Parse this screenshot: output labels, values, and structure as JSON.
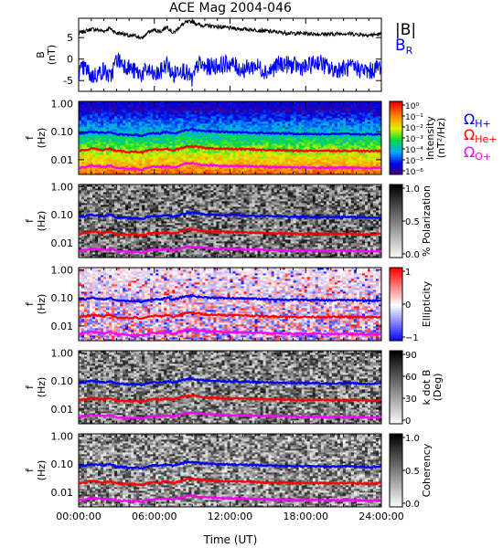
{
  "chart_data": {
    "type": "spectrogram",
    "title": "ACE Mag 2004-046",
    "x": {
      "label": "Time (UT)",
      "ticks": [
        "00:00:00",
        "06:00:00",
        "12:00:00",
        "18:00:00",
        "24:00:00"
      ],
      "tick_hours": [
        0,
        6,
        12,
        18,
        24
      ],
      "range_hours": [
        0,
        24
      ]
    },
    "line_panel": {
      "ylabel_top": "B",
      "ylabel_bottom": "(nT)",
      "yticks": [
        "5",
        "0",
        "-5"
      ],
      "ytick_values": [
        5,
        0,
        -5
      ],
      "ylim": [
        -7.5,
        9.5
      ],
      "series": [
        {
          "name": "|B|",
          "color": "#000000",
          "hours": [
            0,
            0.5,
            1,
            1.5,
            2,
            2.5,
            3,
            3.5,
            4,
            4.5,
            5,
            5.5,
            6,
            6.5,
            7,
            7.5,
            8,
            8.5,
            9,
            9.5,
            10,
            11,
            12,
            13,
            14,
            15,
            16,
            17,
            18,
            19,
            20,
            21,
            22,
            23,
            24
          ],
          "values": [
            6,
            6.5,
            7,
            6.8,
            6.5,
            7.2,
            6,
            6,
            5.3,
            5.5,
            4.8,
            6.2,
            6.8,
            6.4,
            7.6,
            6,
            7.5,
            8.5,
            8.8,
            8,
            7.8,
            7.6,
            7.2,
            7,
            6.8,
            6.5,
            6.2,
            6,
            6,
            5.8,
            5.8,
            6,
            5.8,
            5.6,
            5.8
          ]
        },
        {
          "name": "B",
          "name_sub": "R",
          "color": "#0000ff",
          "hours": [
            0,
            0.5,
            1,
            1.5,
            2,
            2.5,
            3,
            3.5,
            4,
            4.5,
            5,
            5.5,
            6,
            6.5,
            7,
            7.5,
            8,
            8.5,
            9,
            9.5,
            10,
            11,
            12,
            13,
            14,
            15,
            16,
            17,
            18,
            19,
            20,
            21,
            22,
            23,
            24
          ],
          "values": [
            -3,
            -2,
            -4,
            -3.5,
            -2.5,
            -4.5,
            0,
            -1,
            -2,
            -3,
            -3.5,
            -2.5,
            -4,
            -3,
            -1,
            -4,
            -2,
            -3,
            -5,
            -1,
            -2,
            -1.5,
            -1,
            -2.5,
            -1.5,
            -3,
            -1,
            -1.5,
            -2,
            -0.5,
            -2.5,
            -2.2,
            -2,
            -3,
            -1.5
          ]
        }
      ]
    },
    "spectrogram_panels": [
      {
        "ylabel_top": "f",
        "ylabel_bottom": "(Hz)",
        "colorbar_label": "Intensity",
        "colorbar_label2": "(nT²/Hz)",
        "scale": "rainbow",
        "colorbar_ticks": [
          "10⁰",
          "10⁻¹",
          "10⁻²",
          "10⁻³",
          "10⁻⁴",
          "10⁻⁵",
          "10⁻⁶"
        ]
      },
      {
        "ylabel_top": "f",
        "ylabel_bottom": "(Hz)",
        "colorbar_label": "% Polarization",
        "colorbar_label2": "",
        "scale": "gray",
        "colorbar_ticks": [
          "1.0",
          "0.5",
          "0.0"
        ]
      },
      {
        "ylabel_top": "f",
        "ylabel_bottom": "(Hz)",
        "colorbar_label": "Ellipticity",
        "colorbar_label2": "",
        "scale": "bwr",
        "colorbar_ticks": [
          "1",
          "0",
          "−1"
        ]
      },
      {
        "ylabel_top": "f",
        "ylabel_bottom": "(Hz)",
        "colorbar_label": "k dot B",
        "colorbar_label2": "(Deg)",
        "scale": "gray",
        "colorbar_ticks": [
          "90",
          "60",
          "30",
          "0"
        ]
      },
      {
        "ylabel_top": "f",
        "ylabel_bottom": "(Hz)",
        "colorbar_label": "Coherency",
        "colorbar_label2": "",
        "scale": "gray",
        "colorbar_ticks": [
          "1.0",
          "0.5",
          "0.0"
        ]
      }
    ],
    "frequency_axis": {
      "scale": "log",
      "yticks": [
        "1.00",
        "0.10",
        "0.01"
      ],
      "ytick_values": [
        1.0,
        0.1,
        0.01
      ],
      "ylim": [
        0.003,
        1.2
      ]
    },
    "gyro_lines": {
      "hours": [
        0,
        0.5,
        1,
        1.5,
        2,
        2.5,
        3,
        3.5,
        4,
        4.5,
        5,
        5.5,
        6,
        6.5,
        7,
        7.5,
        8,
        8.5,
        9,
        9.5,
        10,
        11,
        12,
        13,
        14,
        15,
        16,
        17,
        18,
        19,
        20,
        21,
        22,
        23,
        24
      ],
      "series": [
        {
          "label": "Ω",
          "sub": "H+",
          "color": "#0000ff",
          "values": [
            0.085,
            0.09,
            0.1,
            0.095,
            0.09,
            0.1,
            0.08,
            0.08,
            0.075,
            0.078,
            0.07,
            0.085,
            0.09,
            0.088,
            0.1,
            0.085,
            0.1,
            0.115,
            0.12,
            0.11,
            0.105,
            0.1,
            0.098,
            0.095,
            0.092,
            0.09,
            0.087,
            0.085,
            0.085,
            0.083,
            0.082,
            0.084,
            0.082,
            0.08,
            0.082
          ]
        },
        {
          "label": "Ω",
          "sub": "He+",
          "color": "#ff0000",
          "values": [
            0.021,
            0.022,
            0.025,
            0.024,
            0.022,
            0.025,
            0.02,
            0.02,
            0.019,
            0.02,
            0.018,
            0.021,
            0.023,
            0.022,
            0.025,
            0.021,
            0.025,
            0.029,
            0.03,
            0.028,
            0.026,
            0.025,
            0.024,
            0.024,
            0.023,
            0.022,
            0.022,
            0.021,
            0.021,
            0.021,
            0.021,
            0.021,
            0.021,
            0.02,
            0.021
          ]
        },
        {
          "label": "Ω",
          "sub": "O+",
          "color": "#ff00ff",
          "values": [
            0.0053,
            0.0055,
            0.0062,
            0.006,
            0.0055,
            0.0062,
            0.005,
            0.005,
            0.0047,
            0.0049,
            0.0045,
            0.0053,
            0.0057,
            0.0055,
            0.0062,
            0.0053,
            0.0062,
            0.0072,
            0.0075,
            0.007,
            0.0066,
            0.0062,
            0.0061,
            0.006,
            0.0058,
            0.0056,
            0.0054,
            0.0053,
            0.0053,
            0.0052,
            0.0052,
            0.0053,
            0.0052,
            0.005,
            0.0052
          ]
        }
      ]
    }
  }
}
